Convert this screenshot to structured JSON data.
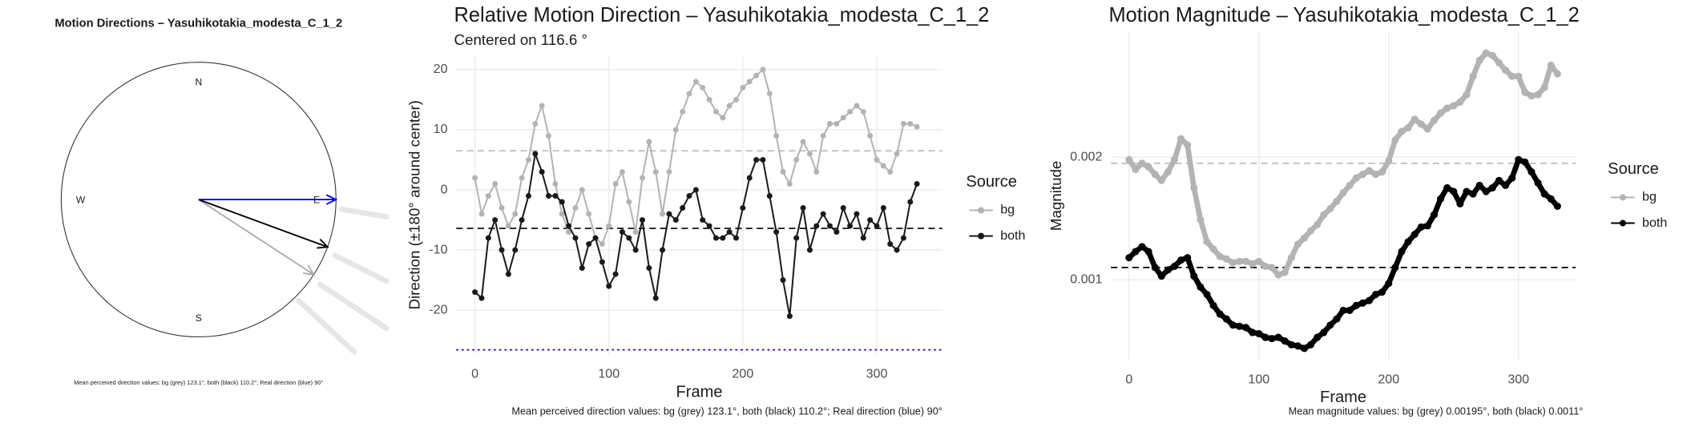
{
  "chart_data": [
    {
      "type": "compass",
      "title": "Motion Directions – Yasuhikotakia_modesta_C_1_2",
      "caption": "Mean perceived direction values: bg (grey) 123.1°, both (black) 110.2°; Real direction (blue) 90°",
      "directions": [
        "N",
        "E",
        "S",
        "W"
      ],
      "values": [
        123.1,
        110.2,
        90
      ],
      "colors": [
        "#aaaaaa",
        "#000000",
        "#0000ff"
      ]
    },
    {
      "type": "line",
      "title": "Relative Motion Direction – Yasuhikotakia_modesta_C_1_2",
      "subtitle": "Centered on  116.6 °",
      "x_label": "Frame",
      "y_label": "Direction (±180° around center)",
      "caption": "Mean perceived direction values: bg (grey) 123.1°, both (black) 110.2°; Real direction (blue) 90°",
      "legend_title": "Source",
      "grid": true,
      "xlim": [
        -14,
        349
      ],
      "xticks": [
        0,
        100,
        200,
        300
      ],
      "ylim": [
        -27.3,
        22.3
      ],
      "yticks": [
        -20,
        -10,
        0,
        10,
        20
      ],
      "x": [
        0,
        5,
        10,
        15,
        20,
        25,
        30,
        35,
        40,
        45,
        50,
        55,
        60,
        65,
        70,
        75,
        80,
        85,
        90,
        95,
        100,
        105,
        110,
        115,
        120,
        125,
        130,
        135,
        140,
        145,
        150,
        155,
        160,
        165,
        170,
        175,
        180,
        185,
        190,
        195,
        200,
        205,
        210,
        215,
        220,
        225,
        230,
        235,
        240,
        245,
        250,
        255,
        260,
        265,
        270,
        275,
        280,
        285,
        290,
        295,
        300,
        305,
        310,
        315,
        320,
        325,
        330
      ],
      "series": [
        {
          "name": "bg",
          "color": "#b3b3b3",
          "values": [
            2,
            -4,
            -1,
            1,
            -3,
            -6,
            -4,
            2,
            5,
            11,
            14,
            9,
            1,
            -4,
            -7,
            -3,
            0,
            -4,
            -8,
            -9,
            -6,
            1,
            3,
            -2,
            -7,
            2,
            8,
            3,
            -4,
            3,
            10,
            13,
            16,
            18,
            17,
            15,
            13,
            12,
            14,
            15,
            17,
            18,
            19,
            20,
            16,
            9,
            3,
            1,
            5,
            8,
            6,
            3,
            9,
            11,
            11,
            12,
            13,
            14,
            13,
            9,
            5,
            4,
            3,
            6,
            11,
            11,
            10.5
          ]
        },
        {
          "name": "both",
          "color": "#1a1a1a",
          "values": [
            -17,
            -18,
            -8,
            -5,
            -10,
            -14,
            -10,
            -5,
            -1,
            6,
            3,
            -1,
            -1,
            -2,
            -6,
            -8,
            -13,
            -9,
            -8,
            -12,
            -16,
            -14,
            -7,
            -8,
            -10,
            -5,
            -13,
            -18,
            -10,
            -4,
            -5,
            -3,
            -1,
            0,
            -5,
            -6,
            -8,
            -8,
            -7,
            -8,
            -3,
            2,
            5,
            5,
            -1,
            -7,
            -15,
            -21,
            -8,
            -3,
            -10,
            -6,
            -4,
            -6,
            -7,
            -3,
            -6,
            -4,
            -8,
            -5,
            -6,
            -3,
            -9,
            -10,
            -8,
            -2,
            1
          ]
        }
      ],
      "hlines": [
        {
          "value": 6.5,
          "color": "#bdbdbd",
          "style": "dashed"
        },
        {
          "value": -6.4,
          "color": "#000000",
          "style": "dashed"
        },
        {
          "value": -26.6,
          "color": "#0000ff",
          "style": "dotted"
        }
      ]
    },
    {
      "type": "line",
      "title": "Motion Magnitude – Yasuhikotakia_modesta_C_1_2",
      "x_label": "Frame",
      "y_label": "Magnitude",
      "caption": "Mean magnitude values: bg (grey) 0.00195°, both (black) 0.0011°",
      "legend_title": "Source",
      "grid": true,
      "xlim": [
        -14,
        344
      ],
      "xticks": [
        0,
        100,
        200,
        300
      ],
      "ylim": [
        0.00035,
        0.00302
      ],
      "yticks": [
        0.001,
        0.002
      ],
      "x": [
        0,
        5,
        10,
        15,
        20,
        25,
        30,
        35,
        40,
        45,
        50,
        55,
        60,
        65,
        70,
        75,
        80,
        85,
        90,
        95,
        100,
        105,
        110,
        115,
        120,
        125,
        130,
        135,
        140,
        145,
        150,
        155,
        160,
        165,
        170,
        175,
        180,
        185,
        190,
        195,
        200,
        205,
        210,
        215,
        220,
        225,
        230,
        235,
        240,
        245,
        250,
        255,
        260,
        265,
        270,
        275,
        280,
        285,
        290,
        295,
        300,
        305,
        310,
        315,
        320,
        325,
        330
      ],
      "series": [
        {
          "name": "bg",
          "color": "#b3b3b3",
          "values": [
            0.00198,
            0.0019,
            0.00195,
            0.00192,
            0.00186,
            0.00181,
            0.00188,
            0.00198,
            0.00215,
            0.0021,
            0.00175,
            0.00149,
            0.00131,
            0.00125,
            0.00119,
            0.00117,
            0.00114,
            0.00115,
            0.00115,
            0.00113,
            0.00115,
            0.00111,
            0.0011,
            0.00104,
            0.00106,
            0.00118,
            0.00129,
            0.00134,
            0.0014,
            0.00145,
            0.00153,
            0.00158,
            0.00164,
            0.00171,
            0.00177,
            0.00183,
            0.00186,
            0.00189,
            0.00186,
            0.00188,
            0.00197,
            0.00214,
            0.00221,
            0.00224,
            0.00231,
            0.00227,
            0.00223,
            0.0023,
            0.00236,
            0.0024,
            0.00242,
            0.00245,
            0.00251,
            0.00266,
            0.00279,
            0.00285,
            0.00283,
            0.00277,
            0.00271,
            0.00266,
            0.00266,
            0.00253,
            0.0025,
            0.00251,
            0.00257,
            0.00275,
            0.00268
          ]
        },
        {
          "name": "both",
          "color": "#000000",
          "values": [
            0.00118,
            0.00123,
            0.00127,
            0.00123,
            0.0011,
            0.00103,
            0.00108,
            0.00111,
            0.00116,
            0.00118,
            0.00103,
            0.00094,
            0.00088,
            0.00079,
            0.00072,
            0.00068,
            0.00063,
            0.00062,
            0.00061,
            0.00057,
            0.00056,
            0.00053,
            0.00052,
            0.00053,
            0.0005,
            0.00047,
            0.00046,
            0.00044,
            0.00047,
            0.00053,
            0.00057,
            0.00063,
            0.00068,
            0.00075,
            0.00075,
            0.00079,
            0.00081,
            0.00083,
            0.00088,
            0.0009,
            0.00097,
            0.0011,
            0.00123,
            0.00131,
            0.00137,
            0.00143,
            0.00144,
            0.00153,
            0.00166,
            0.00175,
            0.00172,
            0.00162,
            0.00172,
            0.0017,
            0.00177,
            0.00172,
            0.00175,
            0.00181,
            0.00177,
            0.00183,
            0.00198,
            0.00196,
            0.00188,
            0.00179,
            0.0017,
            0.00166,
            0.0016
          ]
        }
      ],
      "hlines": [
        {
          "value": 0.00195,
          "color": "#bdbdbd",
          "style": "dashed"
        },
        {
          "value": 0.0011,
          "color": "#000000",
          "style": "dashed"
        }
      ]
    }
  ]
}
